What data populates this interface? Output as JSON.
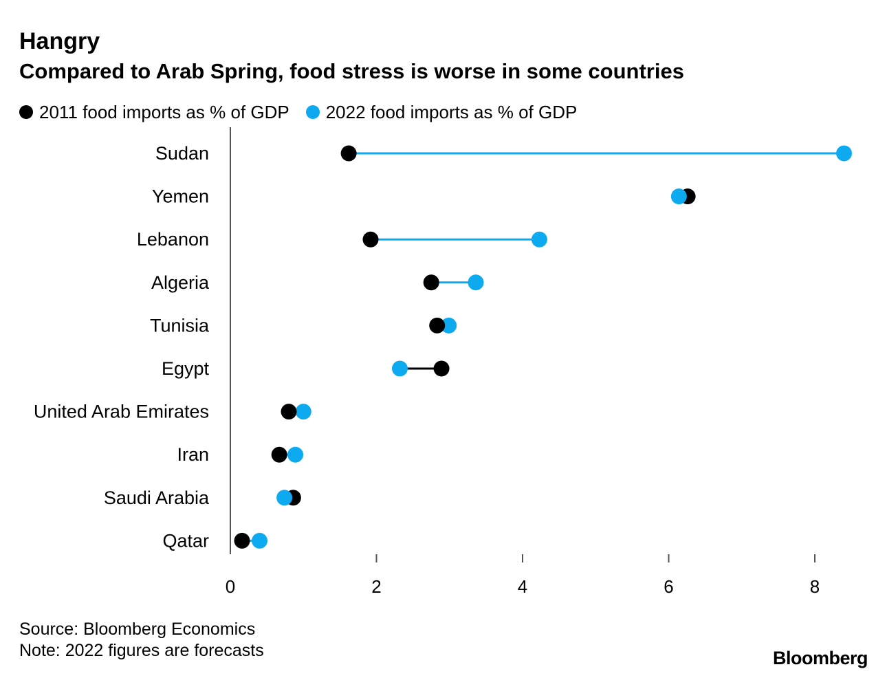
{
  "header": {
    "title": "Hangry",
    "subtitle": "Compared to Arab Spring, food stress is worse in some countries"
  },
  "footer": {
    "source": "Source: Bloomberg Economics",
    "note": "Note: 2022 figures are forecasts",
    "brand": "Bloomberg"
  },
  "colors": {
    "series_2011": "#000000",
    "series_2022": "#0eaaf0",
    "axis": "#555555"
  },
  "chart_data": {
    "type": "dumbbell",
    "title": "Hangry",
    "subtitle": "Compared to Arab Spring, food stress is worse in some countries",
    "xlabel": "",
    "ylabel": "",
    "xlim": [
      0,
      8.6
    ],
    "xticks": [
      0,
      2,
      4,
      6,
      8
    ],
    "categories": [
      "Sudan",
      "Yemen",
      "Lebanon",
      "Algeria",
      "Tunisia",
      "Egypt",
      "United Arab Emirates",
      "Iran",
      "Saudi Arabia",
      "Qatar"
    ],
    "series": [
      {
        "name": "2011 food imports as % of GDP",
        "color": "#000000",
        "values": [
          1.62,
          6.26,
          1.92,
          2.75,
          2.83,
          2.89,
          0.8,
          0.67,
          0.86,
          0.16
        ]
      },
      {
        "name": "2022 food imports as % of GDP",
        "color": "#0eaaf0",
        "values": [
          8.4,
          6.14,
          4.23,
          3.36,
          2.99,
          2.32,
          1.0,
          0.89,
          0.74,
          0.4
        ]
      }
    ],
    "legend": "top-left",
    "grid": false
  }
}
